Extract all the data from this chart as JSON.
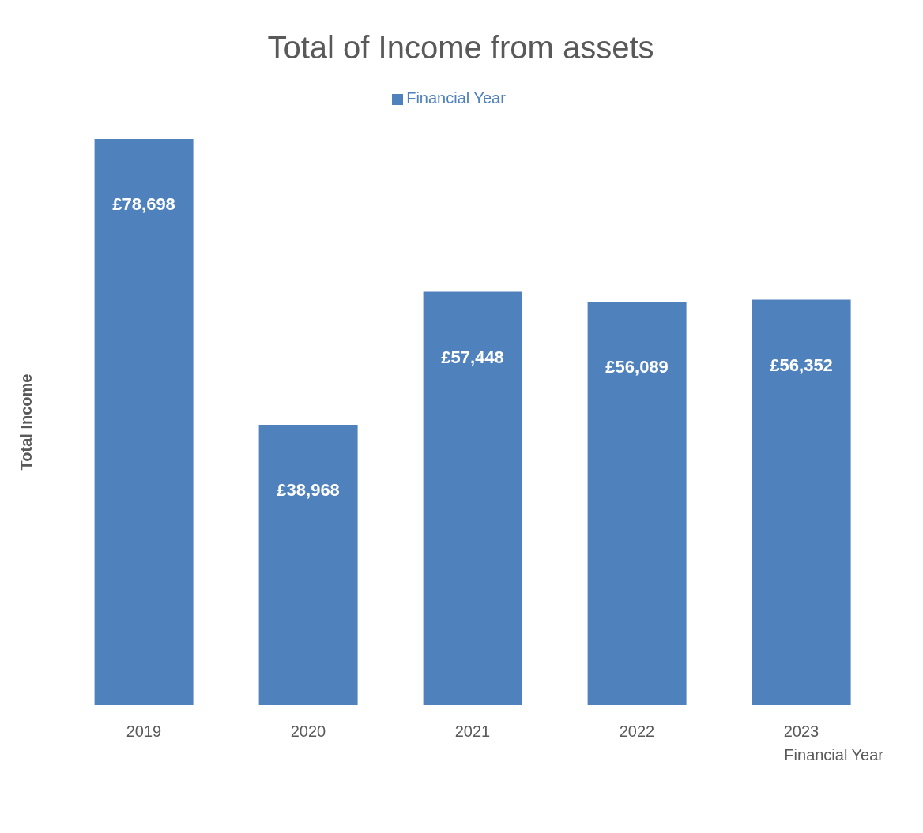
{
  "chart_data": {
    "type": "bar",
    "title": "Total of Income from assets",
    "xlabel": "Financial Year",
    "ylabel": "Total Income",
    "categories": [
      "2019",
      "2020",
      "2021",
      "2022",
      "2023"
    ],
    "series": [
      {
        "name": "Financial Year",
        "color": "#4f81bd",
        "values": [
          78698,
          38968,
          57448,
          56089,
          56352
        ],
        "value_labels": [
          "£78,698",
          "£38,968",
          "£57,448",
          "£56,089",
          "£56,352"
        ]
      }
    ],
    "legend": "top",
    "grid": false
  }
}
